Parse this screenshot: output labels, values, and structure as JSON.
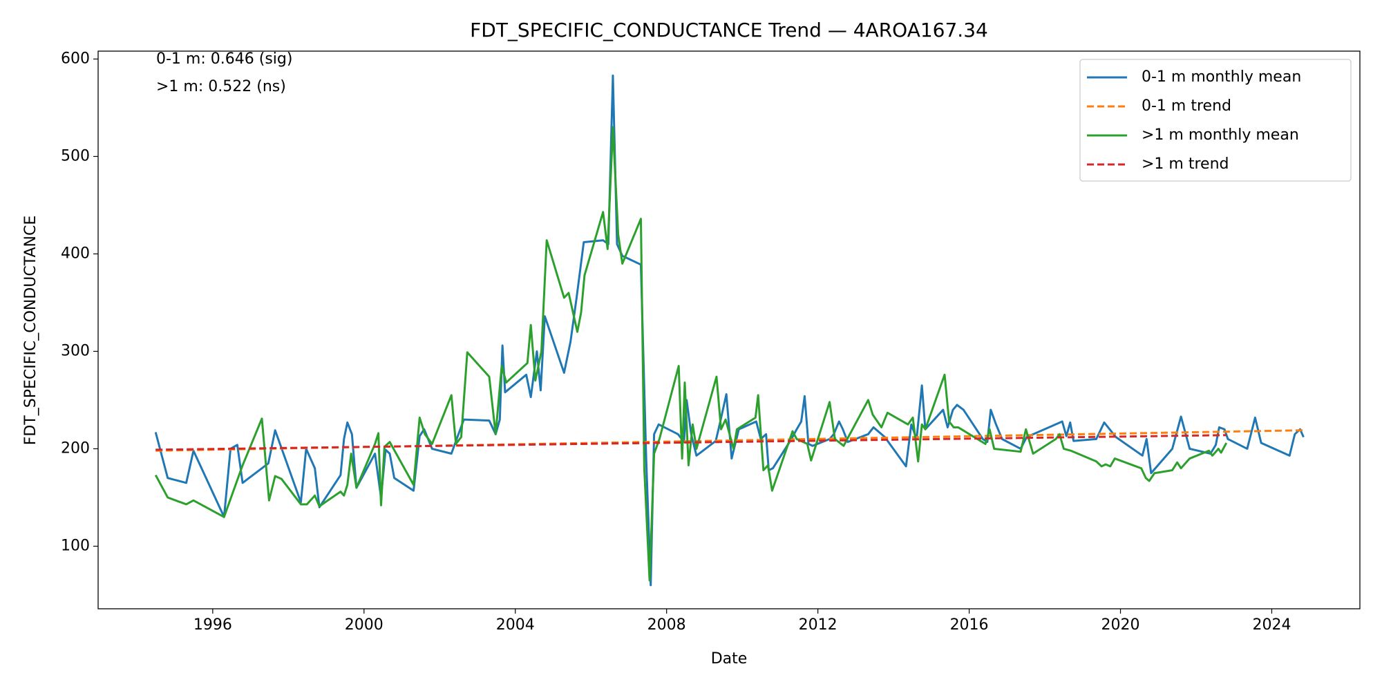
{
  "chart_data": {
    "type": "line",
    "title": "FDT_SPECIFIC_CONDUCTANCE Trend — 4AROA167.34",
    "xlabel": "Date",
    "ylabel": "FDT_SPECIFIC_CONDUCTANCE",
    "annotations": [
      "0-1 m: 0.646 (sig)",
      ">1 m: 0.522 (ns)"
    ],
    "xlim": [
      1992.97,
      2026.33
    ],
    "xticks": [
      1996,
      2000,
      2004,
      2008,
      2012,
      2016,
      2020,
      2024
    ],
    "ylim": [
      35.8,
      608.1
    ],
    "yticks": [
      100,
      200,
      300,
      400,
      500,
      600
    ],
    "grid": false,
    "legend": "upper right",
    "series": [
      {
        "name": "0-1 m monthly mean",
        "color": "#1f77b4",
        "dash": false,
        "x": [
          1994.49,
          1994.81,
          1995.3,
          1995.49,
          1996.3,
          1996.47,
          1996.65,
          1996.79,
          1997.47,
          1997.65,
          1998.33,
          1998.47,
          1998.7,
          1998.82,
          1999.38,
          1999.47,
          1999.56,
          1999.68,
          1999.8,
          2000.29,
          2000.45,
          2000.57,
          2000.68,
          2000.8,
          2001.31,
          2001.47,
          2001.59,
          2001.8,
          2002.31,
          2002.45,
          2002.64,
          2003.31,
          2003.48,
          2003.59,
          2003.66,
          2003.73,
          2004.29,
          2004.41,
          2004.57,
          2004.67,
          2004.78,
          2005.29,
          2005.46,
          2005.62,
          2005.81,
          2006.32,
          2006.46,
          2006.58,
          2006.69,
          2006.83,
          2007.32,
          2007.46,
          2007.58,
          2007.67,
          2007.79,
          2008.3,
          2008.46,
          2008.53,
          2008.65,
          2008.79,
          2009.3,
          2009.42,
          2009.58,
          2009.72,
          2009.91,
          2010.37,
          2010.49,
          2010.63,
          2010.7,
          2010.81,
          2011.3,
          2011.44,
          2011.56,
          2011.65,
          2011.75,
          2011.86,
          2012.31,
          2012.42,
          2012.56,
          2012.66,
          2012.79,
          2013.33,
          2013.47,
          2013.77,
          2014.33,
          2014.47,
          2014.61,
          2014.75,
          2014.84,
          2015.31,
          2015.43,
          2015.57,
          2015.68,
          2015.85,
          2016.36,
          2016.48,
          2016.57,
          2016.71,
          2016.87,
          2017.36,
          2017.52,
          2018.46,
          2018.57,
          2018.67,
          2018.76,
          2019.36,
          2019.57,
          2019.88,
          2020.58,
          2020.69,
          2020.81,
          2021.37,
          2021.6,
          2021.83,
          2022.38,
          2022.52,
          2022.61,
          2022.75,
          2022.84,
          2023.35,
          2023.56,
          2023.72,
          2024.47,
          2024.61,
          2024.75,
          2024.84
        ],
        "values": [
          217,
          170,
          165,
          198,
          130,
          200,
          204,
          165,
          185,
          219,
          145,
          200,
          180,
          140,
          173,
          210,
          227,
          215,
          160,
          195,
          150,
          199,
          195,
          170,
          157,
          213,
          220,
          200,
          195,
          210,
          230,
          229,
          215,
          230,
          306,
          258,
          276,
          253,
          300,
          260,
          336,
          278,
          310,
          355,
          412,
          414,
          410,
          583,
          410,
          398,
          389,
          190,
          60,
          215,
          225,
          215,
          207,
          250,
          215,
          193,
          208,
          228,
          256,
          190,
          220,
          228,
          210,
          215,
          178,
          180,
          210,
          220,
          228,
          254,
          205,
          203,
          210,
          215,
          228,
          220,
          207,
          215,
          222,
          212,
          182,
          225,
          210,
          265,
          220,
          240,
          222,
          240,
          245,
          240,
          210,
          207,
          240,
          225,
          210,
          200,
          212,
          228,
          213,
          227,
          208,
          210,
          227,
          212,
          193,
          210,
          175,
          200,
          233,
          200,
          195,
          204,
          222,
          220,
          210,
          200,
          232,
          206,
          193,
          215,
          220,
          212
        ]
      },
      {
        "name": "0-1 m trend",
        "color": "#ff7f0e",
        "dash": true,
        "x": [
          1994.49,
          2024.84
        ],
        "values": [
          198,
          219
        ]
      },
      {
        "name": ">1 m monthly mean",
        "color": "#2ca02c",
        "dash": false,
        "x": [
          1994.49,
          1994.81,
          1995.3,
          1995.49,
          1996.3,
          1996.79,
          1997.3,
          1997.49,
          1997.65,
          1997.82,
          1998.33,
          1998.49,
          1998.7,
          1998.82,
          1999.38,
          1999.47,
          1999.56,
          1999.66,
          1999.8,
          2000.29,
          2000.38,
          2000.45,
          2000.54,
          2000.68,
          2001.31,
          2001.47,
          2001.61,
          2001.8,
          2002.31,
          2002.43,
          2002.57,
          2002.73,
          2003.31,
          2003.48,
          2003.64,
          2003.76,
          2004.32,
          2004.41,
          2004.53,
          2004.69,
          2004.83,
          2005.29,
          2005.41,
          2005.64,
          2005.74,
          2005.83,
          2006.32,
          2006.44,
          2006.58,
          2006.72,
          2006.83,
          2007.32,
          2007.41,
          2007.55,
          2007.67,
          2007.81,
          2008.32,
          2008.41,
          2008.48,
          2008.58,
          2008.69,
          2008.79,
          2009.32,
          2009.44,
          2009.56,
          2009.77,
          2009.86,
          2010.35,
          2010.42,
          2010.56,
          2010.68,
          2010.79,
          2011.33,
          2011.44,
          2011.72,
          2011.82,
          2012.31,
          2012.45,
          2012.68,
          2013.33,
          2013.45,
          2013.68,
          2013.84,
          2014.38,
          2014.51,
          2014.65,
          2014.75,
          2014.84,
          2015.35,
          2015.47,
          2015.59,
          2015.71,
          2016.43,
          2016.54,
          2016.66,
          2017.36,
          2017.5,
          2017.69,
          2018.29,
          2018.39,
          2018.5,
          2018.69,
          2019.36,
          2019.5,
          2019.61,
          2019.73,
          2019.85,
          2020.55,
          2020.67,
          2020.76,
          2020.9,
          2021.37,
          2021.5,
          2021.6,
          2021.83,
          2022.34,
          2022.43,
          2022.59,
          2022.66,
          2022.8
        ],
        "values": [
          173,
          150,
          143,
          147,
          130,
          183,
          231,
          147,
          172,
          169,
          143,
          143,
          152,
          141,
          156,
          152,
          163,
          195,
          160,
          205,
          216,
          142,
          202,
          207,
          163,
          232,
          215,
          205,
          255,
          205,
          212,
          299,
          274,
          215,
          285,
          268,
          288,
          327,
          270,
          300,
          414,
          355,
          360,
          320,
          340,
          378,
          443,
          405,
          530,
          420,
          390,
          436,
          180,
          65,
          195,
          210,
          285,
          190,
          268,
          183,
          225,
          200,
          274,
          220,
          230,
          200,
          220,
          232,
          255,
          178,
          183,
          157,
          218,
          210,
          205,
          188,
          248,
          210,
          203,
          250,
          235,
          222,
          237,
          225,
          232,
          187,
          225,
          220,
          276,
          228,
          222,
          222,
          205,
          220,
          200,
          197,
          220,
          195,
          210,
          215,
          200,
          198,
          187,
          182,
          184,
          182,
          190,
          180,
          170,
          167,
          175,
          178,
          186,
          180,
          190,
          198,
          193,
          200,
          196,
          206
        ]
      },
      {
        "name": ">1 m trend",
        "color": "#d62728",
        "dash": true,
        "x": [
          1994.49,
          2022.8
        ],
        "values": [
          199,
          214
        ]
      }
    ]
  }
}
